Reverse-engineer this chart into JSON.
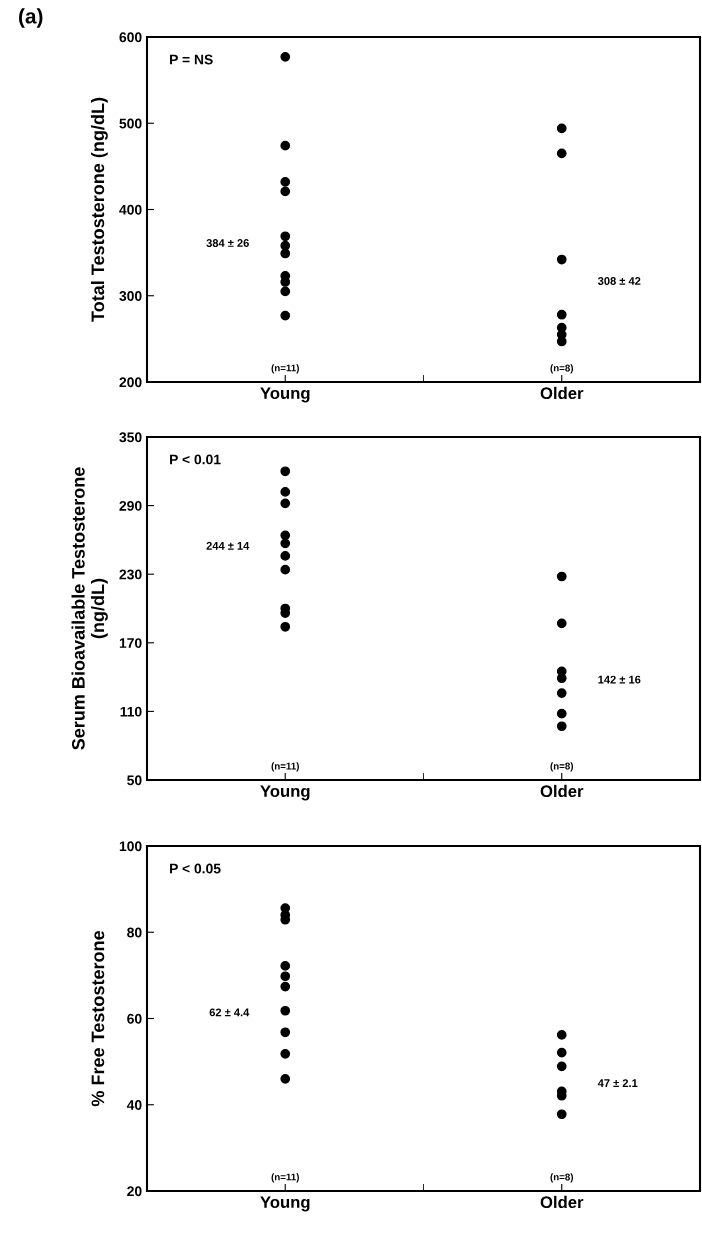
{
  "chart_data": [
    {
      "type": "scatter",
      "title": "(a)",
      "ylabel": "Total Testosterone (ng/dL)",
      "categories": [
        "Young",
        "Older"
      ],
      "ylim": [
        200,
        600
      ],
      "yticks": [
        200,
        300,
        400,
        500,
        600
      ],
      "marker": "circle",
      "grid": false,
      "legend": false,
      "series": [
        {
          "x": [
            "Young",
            "Young",
            "Young",
            "Young",
            "Young",
            "Young",
            "Young",
            "Young",
            "Young",
            "Young",
            "Young"
          ],
          "values": [
            577,
            474,
            432,
            421,
            369,
            358,
            349,
            323,
            316,
            305,
            277
          ],
          "color": "#000000"
        },
        {
          "x": [
            "Older",
            "Older",
            "Older",
            "Older",
            "Older",
            "Older",
            "Older"
          ],
          "values": [
            494,
            465,
            342,
            278,
            263,
            255,
            247
          ],
          "color": "#000000"
        }
      ],
      "annotations": [
        "P = NS",
        "384 ± 26",
        "308 ± 42",
        "(n=11)",
        "(n=8)"
      ]
    },
    {
      "type": "scatter",
      "ylabel": "Serum Bioavailable Testosterone\n(ng/dL)",
      "categories": [
        "Young",
        "Older"
      ],
      "ylim": [
        50,
        350
      ],
      "yticks": [
        50,
        110,
        170,
        230,
        290,
        350
      ],
      "marker": "circle",
      "grid": false,
      "legend": false,
      "series": [
        {
          "x": [
            "Young",
            "Young",
            "Young",
            "Young",
            "Young",
            "Young",
            "Young",
            "Young",
            "Young",
            "Young",
            "Young"
          ],
          "values": [
            320,
            302,
            292,
            264,
            null,
            257,
            246,
            234,
            200,
            196,
            184
          ],
          "color": "#000000"
        },
        {
          "x": [
            "Older",
            "Older",
            "Older",
            "Older",
            "Older",
            "Older",
            "Older"
          ],
          "values": [
            228,
            187,
            145,
            139,
            126,
            108,
            97
          ],
          "color": "#000000"
        }
      ],
      "annotations": [
        "P < 0.01",
        "244 ± 14",
        "142 ± 16",
        "(n=11)",
        "(n=8)"
      ]
    },
    {
      "type": "scatter",
      "ylabel": "% Free Testosterone",
      "categories": [
        "Young",
        "Older"
      ],
      "ylim": [
        20,
        100
      ],
      "yticks": [
        20,
        40,
        60,
        80,
        100
      ],
      "marker": "circle",
      "grid": false,
      "legend": false,
      "series": [
        {
          "x": [
            "Young",
            "Young",
            "Young",
            "Young",
            "Young",
            "Young",
            "Young",
            "Young",
            "Young",
            "Young",
            "Young"
          ],
          "values": [
            85.6,
            84,
            82.9,
            72.2,
            null,
            69.8,
            67.4,
            61.8,
            56.8,
            51.8,
            46
          ],
          "color": "#000000"
        },
        {
          "x": [
            "Older",
            "Older",
            "Older",
            "Older",
            "Older",
            "Older"
          ],
          "values": [
            56.2,
            52.1,
            48.9,
            43.1,
            42.1,
            37.8
          ],
          "color": "#000000"
        }
      ],
      "annotations": [
        "P < 0.05",
        "62 ± 4.4",
        "47 ± 2.1",
        "(n=11)",
        "(n=8)"
      ]
    }
  ]
}
